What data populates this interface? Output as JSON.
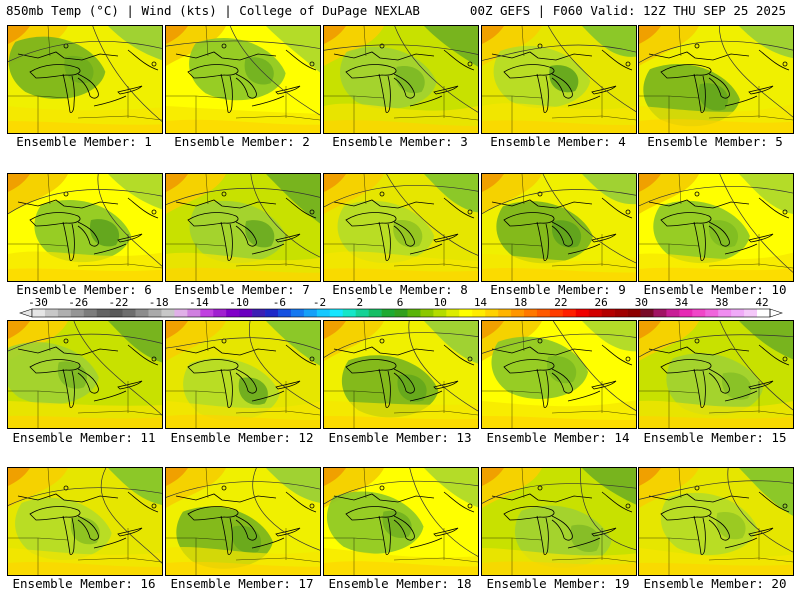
{
  "header": {
    "left": "850mb Temp (°C) | Wind (kts) | College of DuPage NEXLAB",
    "right": "00Z GEFS | F060 Valid: 12Z THU SEP 25 2025"
  },
  "panels": [
    {
      "caption": "Ensemble Member: 1"
    },
    {
      "caption": "Ensemble Member: 2"
    },
    {
      "caption": "Ensemble Member: 3"
    },
    {
      "caption": "Ensemble Member: 4"
    },
    {
      "caption": "Ensemble Member: 5"
    },
    {
      "caption": "Ensemble Member: 6"
    },
    {
      "caption": "Ensemble Member: 7"
    },
    {
      "caption": "Ensemble Member: 8"
    },
    {
      "caption": "Ensemble Member: 9"
    },
    {
      "caption": "Ensemble Member: 10"
    },
    {
      "caption": "Ensemble Member: 11"
    },
    {
      "caption": "Ensemble Member: 12"
    },
    {
      "caption": "Ensemble Member: 13"
    },
    {
      "caption": "Ensemble Member: 14"
    },
    {
      "caption": "Ensemble Member: 15"
    },
    {
      "caption": "Ensemble Member: 16"
    },
    {
      "caption": "Ensemble Member: 17"
    },
    {
      "caption": "Ensemble Member: 18"
    },
    {
      "caption": "Ensemble Member: 19"
    },
    {
      "caption": "Ensemble Member: 20"
    }
  ],
  "colorbar": {
    "ticks": [
      "-30",
      "-26",
      "-22",
      "-18",
      "-14",
      "-10",
      "-6",
      "-2",
      "2",
      "6",
      "10",
      "14",
      "18",
      "22",
      "26",
      "30",
      "34",
      "38",
      "42"
    ],
    "colors": [
      "#e6e6e6",
      "#c8c8c8",
      "#afafaf",
      "#969696",
      "#7d7d7d",
      "#646464",
      "#5a5a5a",
      "#6e6e6e",
      "#8c8c8c",
      "#aaaaaa",
      "#c8c8c8",
      "#e0b0e8",
      "#d080e0",
      "#c040e0",
      "#a020d0",
      "#8000c8",
      "#6a00c0",
      "#3c1eb4",
      "#1e28c8",
      "#1450e0",
      "#1478f0",
      "#14a0f8",
      "#14c8ff",
      "#14e6ff",
      "#14e6c8",
      "#14d296",
      "#14be64",
      "#1eaa32",
      "#32a01e",
      "#5ab40a",
      "#8cc800",
      "#b4dc00",
      "#dcec00",
      "#ffff00",
      "#ffec00",
      "#ffd200",
      "#ffb400",
      "#ff9600",
      "#ff7800",
      "#ff5a00",
      "#ff3c00",
      "#ff1e00",
      "#f00000",
      "#d20000",
      "#b40000",
      "#a00000",
      "#8c0000",
      "#780a28",
      "#a01464",
      "#c81e96",
      "#e628b4",
      "#f046c8",
      "#f064dc",
      "#f08cf0",
      "#f0aaf8",
      "#f5c8fa",
      "#ffffff"
    ]
  }
}
